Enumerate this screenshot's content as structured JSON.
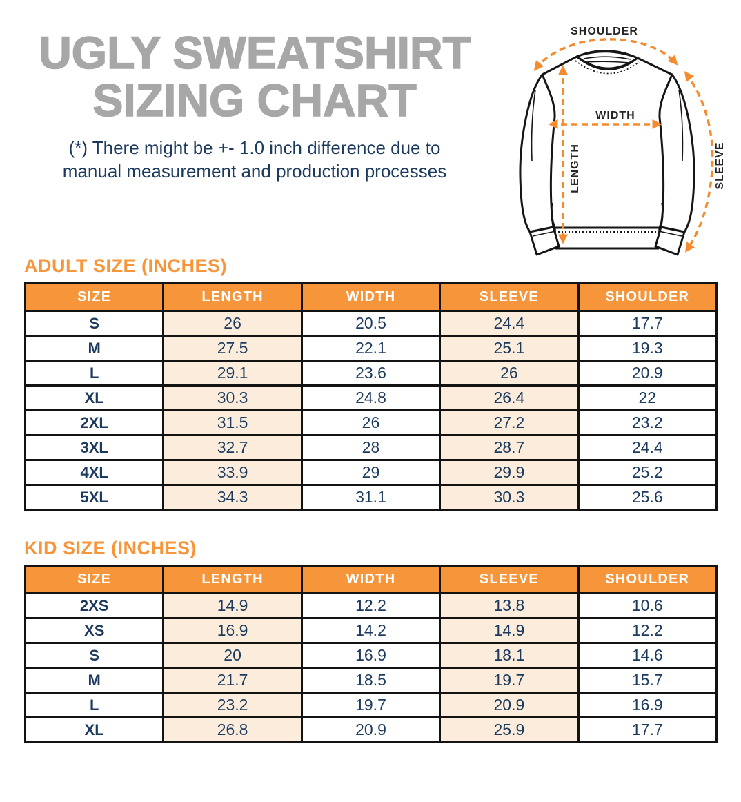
{
  "title": {
    "line1": "UGLY SWEATSHIRT",
    "line2": "SIZING CHART"
  },
  "disclaimer": {
    "line1": "(*) There might be +- 1.0 inch difference due to",
    "line2": "manual measurement and production processes"
  },
  "diagram": {
    "shoulder_label": "SHOULDER",
    "width_label": "WIDTH",
    "length_label": "LENGTH",
    "sleeve_label": "SLEEVE"
  },
  "colors": {
    "accent_orange": "#f7953b",
    "arrow_orange": "#f58b2f",
    "peach_cell": "#fbecdc",
    "navy_text": "#1c3a5e",
    "title_gray": "#a7a7a7"
  },
  "adult_table": {
    "heading": "ADULT SIZE (INCHES)",
    "columns": [
      "SIZE",
      "LENGTH",
      "WIDTH",
      "SLEEVE",
      "SHOULDER"
    ],
    "rows": [
      [
        "S",
        "26",
        "20.5",
        "24.4",
        "17.7"
      ],
      [
        "M",
        "27.5",
        "22.1",
        "25.1",
        "19.3"
      ],
      [
        "L",
        "29.1",
        "23.6",
        "26",
        "20.9"
      ],
      [
        "XL",
        "30.3",
        "24.8",
        "26.4",
        "22"
      ],
      [
        "2XL",
        "31.5",
        "26",
        "27.2",
        "23.2"
      ],
      [
        "3XL",
        "32.7",
        "28",
        "28.7",
        "24.4"
      ],
      [
        "4XL",
        "33.9",
        "29",
        "29.9",
        "25.2"
      ],
      [
        "5XL",
        "34.3",
        "31.1",
        "30.3",
        "25.6"
      ]
    ]
  },
  "kid_table": {
    "heading": "KID SIZE (INCHES)",
    "columns": [
      "SIZE",
      "LENGTH",
      "WIDTH",
      "SLEEVE",
      "SHOULDER"
    ],
    "rows": [
      [
        "2XS",
        "14.9",
        "12.2",
        "13.8",
        "10.6"
      ],
      [
        "XS",
        "16.9",
        "14.2",
        "14.9",
        "12.2"
      ],
      [
        "S",
        "20",
        "16.9",
        "18.1",
        "14.6"
      ],
      [
        "M",
        "21.7",
        "18.5",
        "19.7",
        "15.7"
      ],
      [
        "L",
        "23.2",
        "19.7",
        "20.9",
        "16.9"
      ],
      [
        "XL",
        "26.8",
        "20.9",
        "25.9",
        "17.7"
      ]
    ]
  }
}
